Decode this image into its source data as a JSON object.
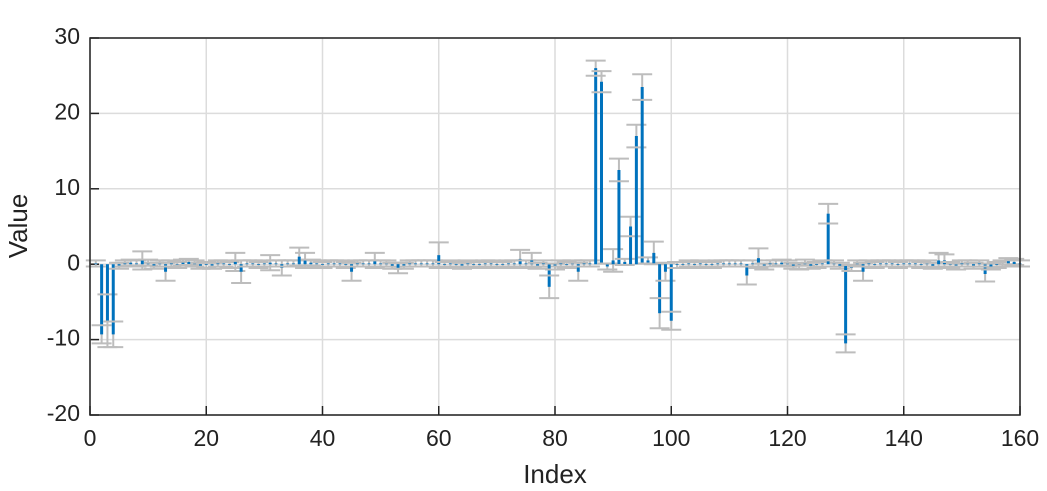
{
  "chart_data": {
    "type": "stem_errorbar",
    "xlabel": "Index",
    "ylabel": "Value",
    "xlim": [
      0,
      160
    ],
    "xticks": [
      0,
      20,
      40,
      60,
      80,
      100,
      120,
      140,
      160
    ],
    "ylim": [
      -20,
      30
    ],
    "yticks": [
      -20,
      -10,
      0,
      10,
      20,
      30
    ],
    "grid": true,
    "x": [
      1,
      2,
      3,
      4,
      5,
      6,
      7,
      8,
      9,
      10,
      11,
      12,
      13,
      14,
      15,
      16,
      17,
      18,
      19,
      20,
      21,
      22,
      23,
      24,
      25,
      26,
      27,
      28,
      29,
      30,
      31,
      32,
      33,
      34,
      35,
      36,
      37,
      38,
      39,
      40,
      41,
      42,
      43,
      44,
      45,
      46,
      47,
      48,
      49,
      50,
      51,
      52,
      53,
      54,
      55,
      56,
      57,
      58,
      59,
      60,
      61,
      62,
      63,
      64,
      65,
      66,
      67,
      68,
      69,
      70,
      71,
      72,
      73,
      74,
      75,
      76,
      77,
      78,
      79,
      80,
      81,
      82,
      83,
      84,
      85,
      86,
      87,
      88,
      89,
      90,
      91,
      92,
      93,
      94,
      95,
      96,
      97,
      98,
      99,
      100,
      101,
      102,
      103,
      104,
      105,
      106,
      107,
      108,
      109,
      110,
      111,
      112,
      113,
      114,
      115,
      116,
      117,
      118,
      119,
      120,
      121,
      122,
      123,
      124,
      125,
      126,
      127,
      128,
      129,
      130,
      131,
      132,
      133,
      134,
      135,
      136,
      137,
      138,
      139,
      140,
      141,
      142,
      143,
      144,
      145,
      146,
      147,
      148,
      149,
      150,
      151,
      152,
      153,
      154,
      155,
      156,
      157,
      158,
      159,
      160
    ],
    "series": [
      {
        "color": "#0072bd",
        "error_color": "#bdbdbd",
        "values": [
          0.1,
          -9.3,
          -7.5,
          -9.3,
          -0.2,
          0.1,
          0.2,
          0.1,
          0.5,
          0.2,
          -0.2,
          0.1,
          -1,
          0.1,
          -0.1,
          0.2,
          0.3,
          0.1,
          -0.2,
          -0.1,
          -0.2,
          0.1,
          0.1,
          -0.1,
          0.3,
          -1,
          0.1,
          0.1,
          -0.1,
          0.1,
          0.2,
          0.1,
          -0.5,
          0.1,
          0.1,
          1,
          0.5,
          0.2,
          0.1,
          -0.1,
          0.1,
          0.1,
          0.1,
          -0.1,
          -1,
          0.1,
          0.1,
          0.1,
          0.5,
          0.1,
          0.1,
          -0.2,
          -0.5,
          -0.2,
          0.1,
          0.1,
          0.1,
          0.1,
          0.1,
          1.2,
          -0.1,
          0.1,
          -0.1,
          -0.2,
          0.1,
          -0.1,
          -0.1,
          0.1,
          0.1,
          -0.1,
          -0.1,
          0.1,
          0.1,
          0.7,
          0.1,
          0.5,
          -0.2,
          0.1,
          -3,
          -0.3,
          0.1,
          -0.1,
          0.1,
          -1,
          0.1,
          0.1,
          26,
          24.2,
          -0.3,
          0.5,
          12.5,
          0.3,
          5,
          17,
          23.5,
          0.5,
          1.5,
          -6.5,
          -1,
          -7.5,
          -0.1,
          -0.1,
          0.1,
          -0.1,
          0.1,
          -0.1,
          -0.1,
          0.1,
          0.1,
          0.1,
          0.1,
          0.1,
          -1.5,
          0.1,
          0.8,
          -0.3,
          0.1,
          0.1,
          0.2,
          0.1,
          -0.2,
          -0.3,
          0.2,
          -0.2,
          -0.1,
          0.1,
          6.7,
          0.1,
          -0.2,
          -10.5,
          -0.5,
          0.1,
          -1,
          0.1,
          -0.1,
          0.1,
          0.1,
          0.1,
          -0.1,
          0.1,
          0.1,
          0.1,
          -0.1,
          0.1,
          -0.2,
          0.5,
          0.5,
          -0.1,
          -0.3,
          0.1,
          0.1,
          -0.2,
          0.1,
          -1.3,
          -0.3,
          -0.1,
          0.1,
          0.4,
          0.3,
          0.1
        ],
        "errors": [
          0.4,
          1.2,
          3.5,
          1.7,
          0.4,
          0.4,
          0.4,
          0.4,
          1.2,
          0.4,
          0.4,
          0.4,
          1.2,
          0.4,
          0.4,
          0.4,
          0.4,
          0.4,
          0.4,
          0.4,
          0.4,
          0.4,
          0.4,
          0.4,
          1.2,
          1.5,
          0.4,
          0.4,
          0.4,
          0.4,
          1,
          0.4,
          1,
          0.4,
          0.4,
          1.2,
          1,
          0.4,
          0.4,
          0.4,
          0.4,
          0.4,
          0.4,
          0.4,
          1.2,
          0.4,
          0.4,
          0.4,
          1,
          0.4,
          0.4,
          0.4,
          0.7,
          0.4,
          0.4,
          0.4,
          0.4,
          0.4,
          0.4,
          1.7,
          0.4,
          0.4,
          0.4,
          0.4,
          0.4,
          0.4,
          0.4,
          0.4,
          0.4,
          0.4,
          0.4,
          0.4,
          0.4,
          1.2,
          0.4,
          1,
          0.4,
          0.4,
          1.5,
          0.4,
          0.4,
          0.4,
          0.4,
          1.2,
          0.4,
          0.4,
          1,
          1.4,
          0.4,
          1.5,
          1.5,
          0.4,
          1.3,
          1.5,
          1.7,
          0.4,
          1.5,
          2,
          1.2,
          1.2,
          0.4,
          0.4,
          0.4,
          0.4,
          0.4,
          0.4,
          0.4,
          0.4,
          0.4,
          0.4,
          0.4,
          0.4,
          1.2,
          0.4,
          1.3,
          0.4,
          0.4,
          0.4,
          0.4,
          0.4,
          0.4,
          0.4,
          0.4,
          0.4,
          0.4,
          0.4,
          1.3,
          0.4,
          0.4,
          1.2,
          0.4,
          0.4,
          1.2,
          0.4,
          0.4,
          0.4,
          0.4,
          0.4,
          0.4,
          0.4,
          0.4,
          0.4,
          0.4,
          0.4,
          0.4,
          1,
          0.8,
          0.4,
          0.4,
          0.4,
          0.4,
          0.4,
          0.4,
          1,
          0.4,
          0.4,
          0.4,
          0.4,
          0.4,
          0.4
        ]
      }
    ]
  }
}
